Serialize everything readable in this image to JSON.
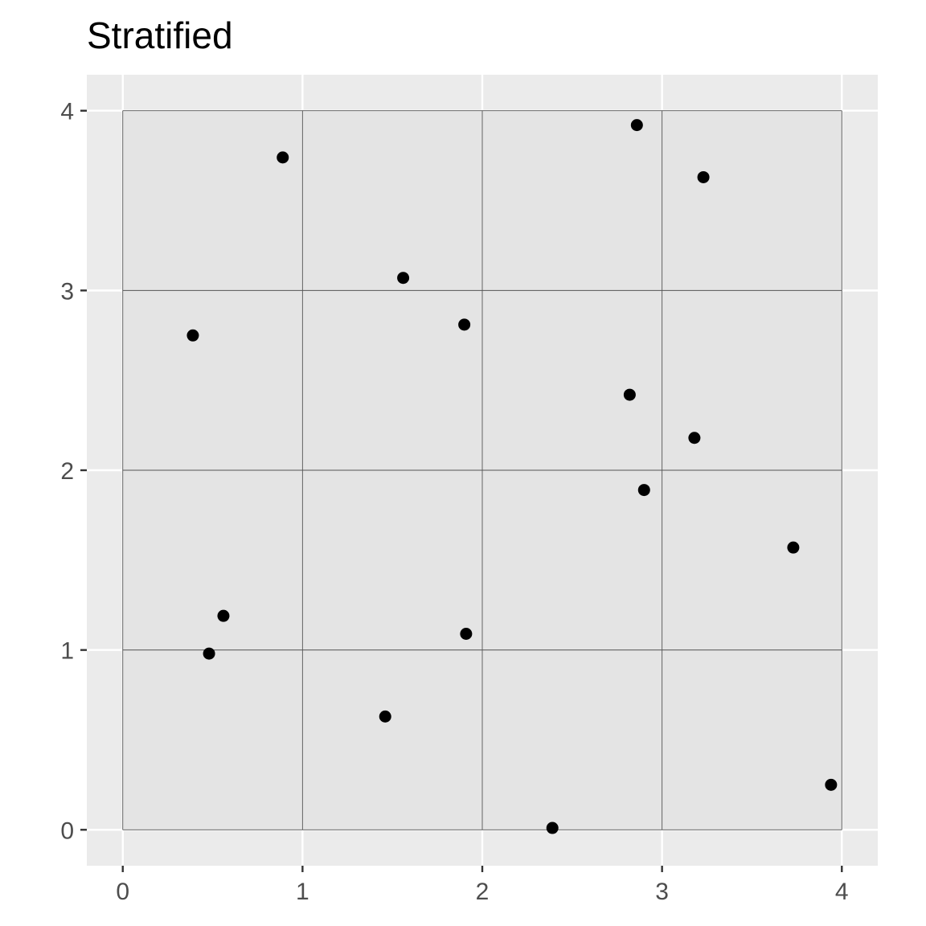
{
  "chart_data": {
    "type": "scatter",
    "title": "Stratified",
    "xlabel": "",
    "ylabel": "",
    "xlim": [
      -0.2,
      4.2
    ],
    "ylim": [
      -0.2,
      4.2
    ],
    "x_ticks": [
      0,
      1,
      2,
      3,
      4
    ],
    "y_ticks": [
      0,
      1,
      2,
      3,
      4
    ],
    "x_tick_labels": [
      "0",
      "1",
      "2",
      "3",
      "4"
    ],
    "y_tick_labels": [
      "0",
      "1",
      "2",
      "3",
      "4"
    ],
    "grid": true,
    "strata_grid": {
      "from": 0,
      "to": 4,
      "step": 1
    },
    "colors": {
      "panel_background": "#ebebeb",
      "strata_fill": "#e4e4e4",
      "strata_lines": "#555555",
      "major_grid": "#ffffff",
      "point": "#000000"
    },
    "points": [
      {
        "x": 0.89,
        "y": 3.74
      },
      {
        "x": 2.86,
        "y": 3.92
      },
      {
        "x": 3.23,
        "y": 3.63
      },
      {
        "x": 1.56,
        "y": 3.07
      },
      {
        "x": 0.39,
        "y": 2.75
      },
      {
        "x": 1.9,
        "y": 2.81
      },
      {
        "x": 2.82,
        "y": 2.42
      },
      {
        "x": 3.18,
        "y": 2.18
      },
      {
        "x": 2.9,
        "y": 1.89
      },
      {
        "x": 3.73,
        "y": 1.57
      },
      {
        "x": 0.56,
        "y": 1.19
      },
      {
        "x": 0.48,
        "y": 0.98
      },
      {
        "x": 1.91,
        "y": 1.09
      },
      {
        "x": 1.46,
        "y": 0.63
      },
      {
        "x": 2.39,
        "y": 0.01
      },
      {
        "x": 3.94,
        "y": 0.25
      }
    ]
  }
}
